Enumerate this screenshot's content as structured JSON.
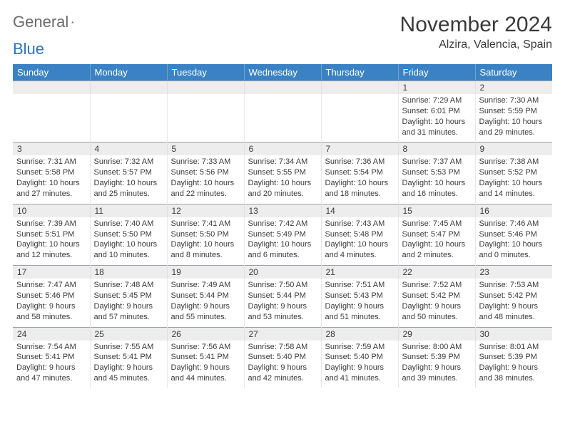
{
  "logo": {
    "word1": "General",
    "word2": "Blue"
  },
  "title": "November 2024",
  "location": "Alzira, Valencia, Spain",
  "colors": {
    "header_bg": "#3b82c4",
    "header_text": "#ffffff",
    "daynum_bg": "#ededed",
    "border": "#9aa0a6",
    "text": "#3a3a3a",
    "accent": "#2f72b9"
  },
  "typography": {
    "title_fontsize": 30,
    "location_fontsize": 16,
    "dayheader_fontsize": 13,
    "cell_fontsize": 11
  },
  "dayHeaders": [
    "Sunday",
    "Monday",
    "Tuesday",
    "Wednesday",
    "Thursday",
    "Friday",
    "Saturday"
  ],
  "weeks": [
    {
      "nums": [
        "",
        "",
        "",
        "",
        "",
        "1",
        "2"
      ],
      "cells": [
        null,
        null,
        null,
        null,
        null,
        {
          "sr": "7:29 AM",
          "ss": "6:01 PM",
          "dh": "10",
          "dm": "31"
        },
        {
          "sr": "7:30 AM",
          "ss": "5:59 PM",
          "dh": "10",
          "dm": "29"
        }
      ]
    },
    {
      "nums": [
        "3",
        "4",
        "5",
        "6",
        "7",
        "8",
        "9"
      ],
      "cells": [
        {
          "sr": "7:31 AM",
          "ss": "5:58 PM",
          "dh": "10",
          "dm": "27"
        },
        {
          "sr": "7:32 AM",
          "ss": "5:57 PM",
          "dh": "10",
          "dm": "25"
        },
        {
          "sr": "7:33 AM",
          "ss": "5:56 PM",
          "dh": "10",
          "dm": "22"
        },
        {
          "sr": "7:34 AM",
          "ss": "5:55 PM",
          "dh": "10",
          "dm": "20"
        },
        {
          "sr": "7:36 AM",
          "ss": "5:54 PM",
          "dh": "10",
          "dm": "18"
        },
        {
          "sr": "7:37 AM",
          "ss": "5:53 PM",
          "dh": "10",
          "dm": "16"
        },
        {
          "sr": "7:38 AM",
          "ss": "5:52 PM",
          "dh": "10",
          "dm": "14"
        }
      ]
    },
    {
      "nums": [
        "10",
        "11",
        "12",
        "13",
        "14",
        "15",
        "16"
      ],
      "cells": [
        {
          "sr": "7:39 AM",
          "ss": "5:51 PM",
          "dh": "10",
          "dm": "12"
        },
        {
          "sr": "7:40 AM",
          "ss": "5:50 PM",
          "dh": "10",
          "dm": "10"
        },
        {
          "sr": "7:41 AM",
          "ss": "5:50 PM",
          "dh": "10",
          "dm": "8"
        },
        {
          "sr": "7:42 AM",
          "ss": "5:49 PM",
          "dh": "10",
          "dm": "6"
        },
        {
          "sr": "7:43 AM",
          "ss": "5:48 PM",
          "dh": "10",
          "dm": "4"
        },
        {
          "sr": "7:45 AM",
          "ss": "5:47 PM",
          "dh": "10",
          "dm": "2"
        },
        {
          "sr": "7:46 AM",
          "ss": "5:46 PM",
          "dh": "10",
          "dm": "0"
        }
      ]
    },
    {
      "nums": [
        "17",
        "18",
        "19",
        "20",
        "21",
        "22",
        "23"
      ],
      "cells": [
        {
          "sr": "7:47 AM",
          "ss": "5:46 PM",
          "dh": "9",
          "dm": "58"
        },
        {
          "sr": "7:48 AM",
          "ss": "5:45 PM",
          "dh": "9",
          "dm": "57"
        },
        {
          "sr": "7:49 AM",
          "ss": "5:44 PM",
          "dh": "9",
          "dm": "55"
        },
        {
          "sr": "7:50 AM",
          "ss": "5:44 PM",
          "dh": "9",
          "dm": "53"
        },
        {
          "sr": "7:51 AM",
          "ss": "5:43 PM",
          "dh": "9",
          "dm": "51"
        },
        {
          "sr": "7:52 AM",
          "ss": "5:42 PM",
          "dh": "9",
          "dm": "50"
        },
        {
          "sr": "7:53 AM",
          "ss": "5:42 PM",
          "dh": "9",
          "dm": "48"
        }
      ]
    },
    {
      "nums": [
        "24",
        "25",
        "26",
        "27",
        "28",
        "29",
        "30"
      ],
      "cells": [
        {
          "sr": "7:54 AM",
          "ss": "5:41 PM",
          "dh": "9",
          "dm": "47"
        },
        {
          "sr": "7:55 AM",
          "ss": "5:41 PM",
          "dh": "9",
          "dm": "45"
        },
        {
          "sr": "7:56 AM",
          "ss": "5:41 PM",
          "dh": "9",
          "dm": "44"
        },
        {
          "sr": "7:58 AM",
          "ss": "5:40 PM",
          "dh": "9",
          "dm": "42"
        },
        {
          "sr": "7:59 AM",
          "ss": "5:40 PM",
          "dh": "9",
          "dm": "41"
        },
        {
          "sr": "8:00 AM",
          "ss": "5:39 PM",
          "dh": "9",
          "dm": "39"
        },
        {
          "sr": "8:01 AM",
          "ss": "5:39 PM",
          "dh": "9",
          "dm": "38"
        }
      ]
    }
  ],
  "labels": {
    "sunrise": "Sunrise:",
    "sunset": "Sunset:",
    "daylight": "Daylight:",
    "hours": "hours",
    "and": "and",
    "minutes": "minutes."
  }
}
